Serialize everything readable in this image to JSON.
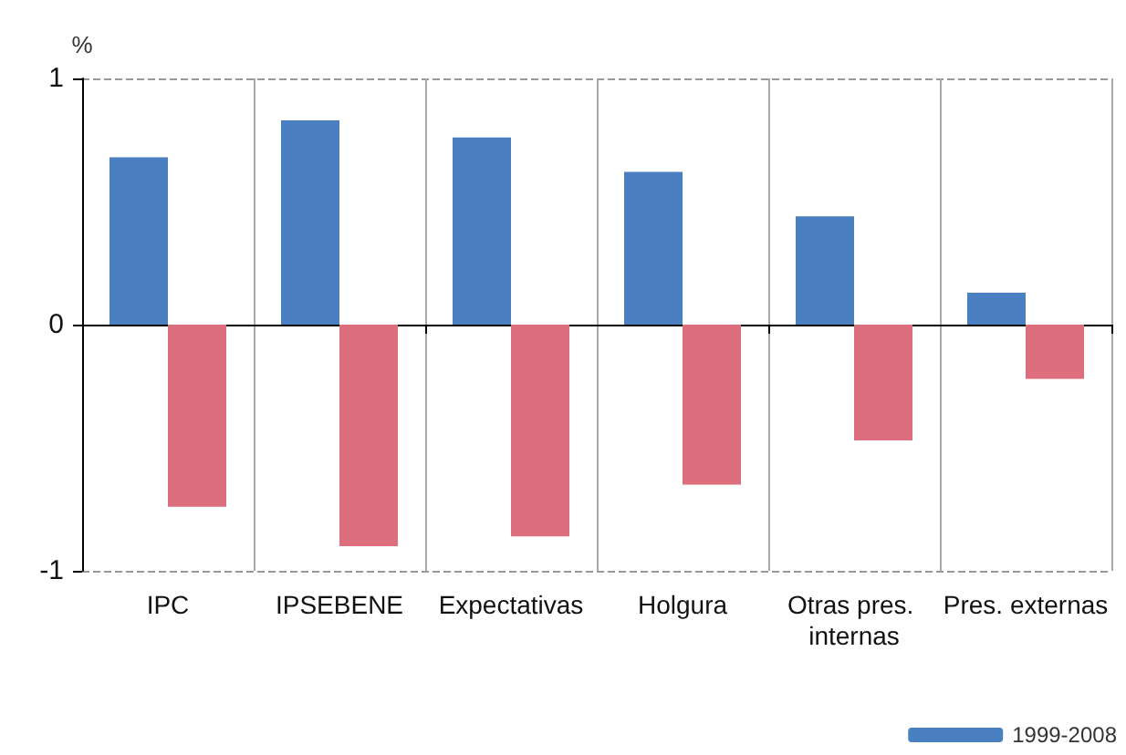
{
  "chart_data": {
    "type": "bar",
    "ylabel": "%",
    "categories": [
      "IPC",
      "IPSEBENE",
      "Expectativas",
      "Holgura",
      "Otras pres. internas",
      "Pres. externas"
    ],
    "series": [
      {
        "name": "1999-2008",
        "color": "#4a7fc1",
        "values": [
          0.68,
          0.83,
          0.76,
          0.62,
          0.44,
          0.13
        ]
      },
      {
        "color": "#dc6e7e",
        "values": [
          -0.74,
          -0.9,
          -0.86,
          -0.65,
          -0.47,
          -0.22
        ]
      }
    ],
    "ylim": [
      -1,
      1
    ],
    "yticks": [
      -1,
      0,
      1
    ],
    "grid": true,
    "legend": "bottom right"
  }
}
